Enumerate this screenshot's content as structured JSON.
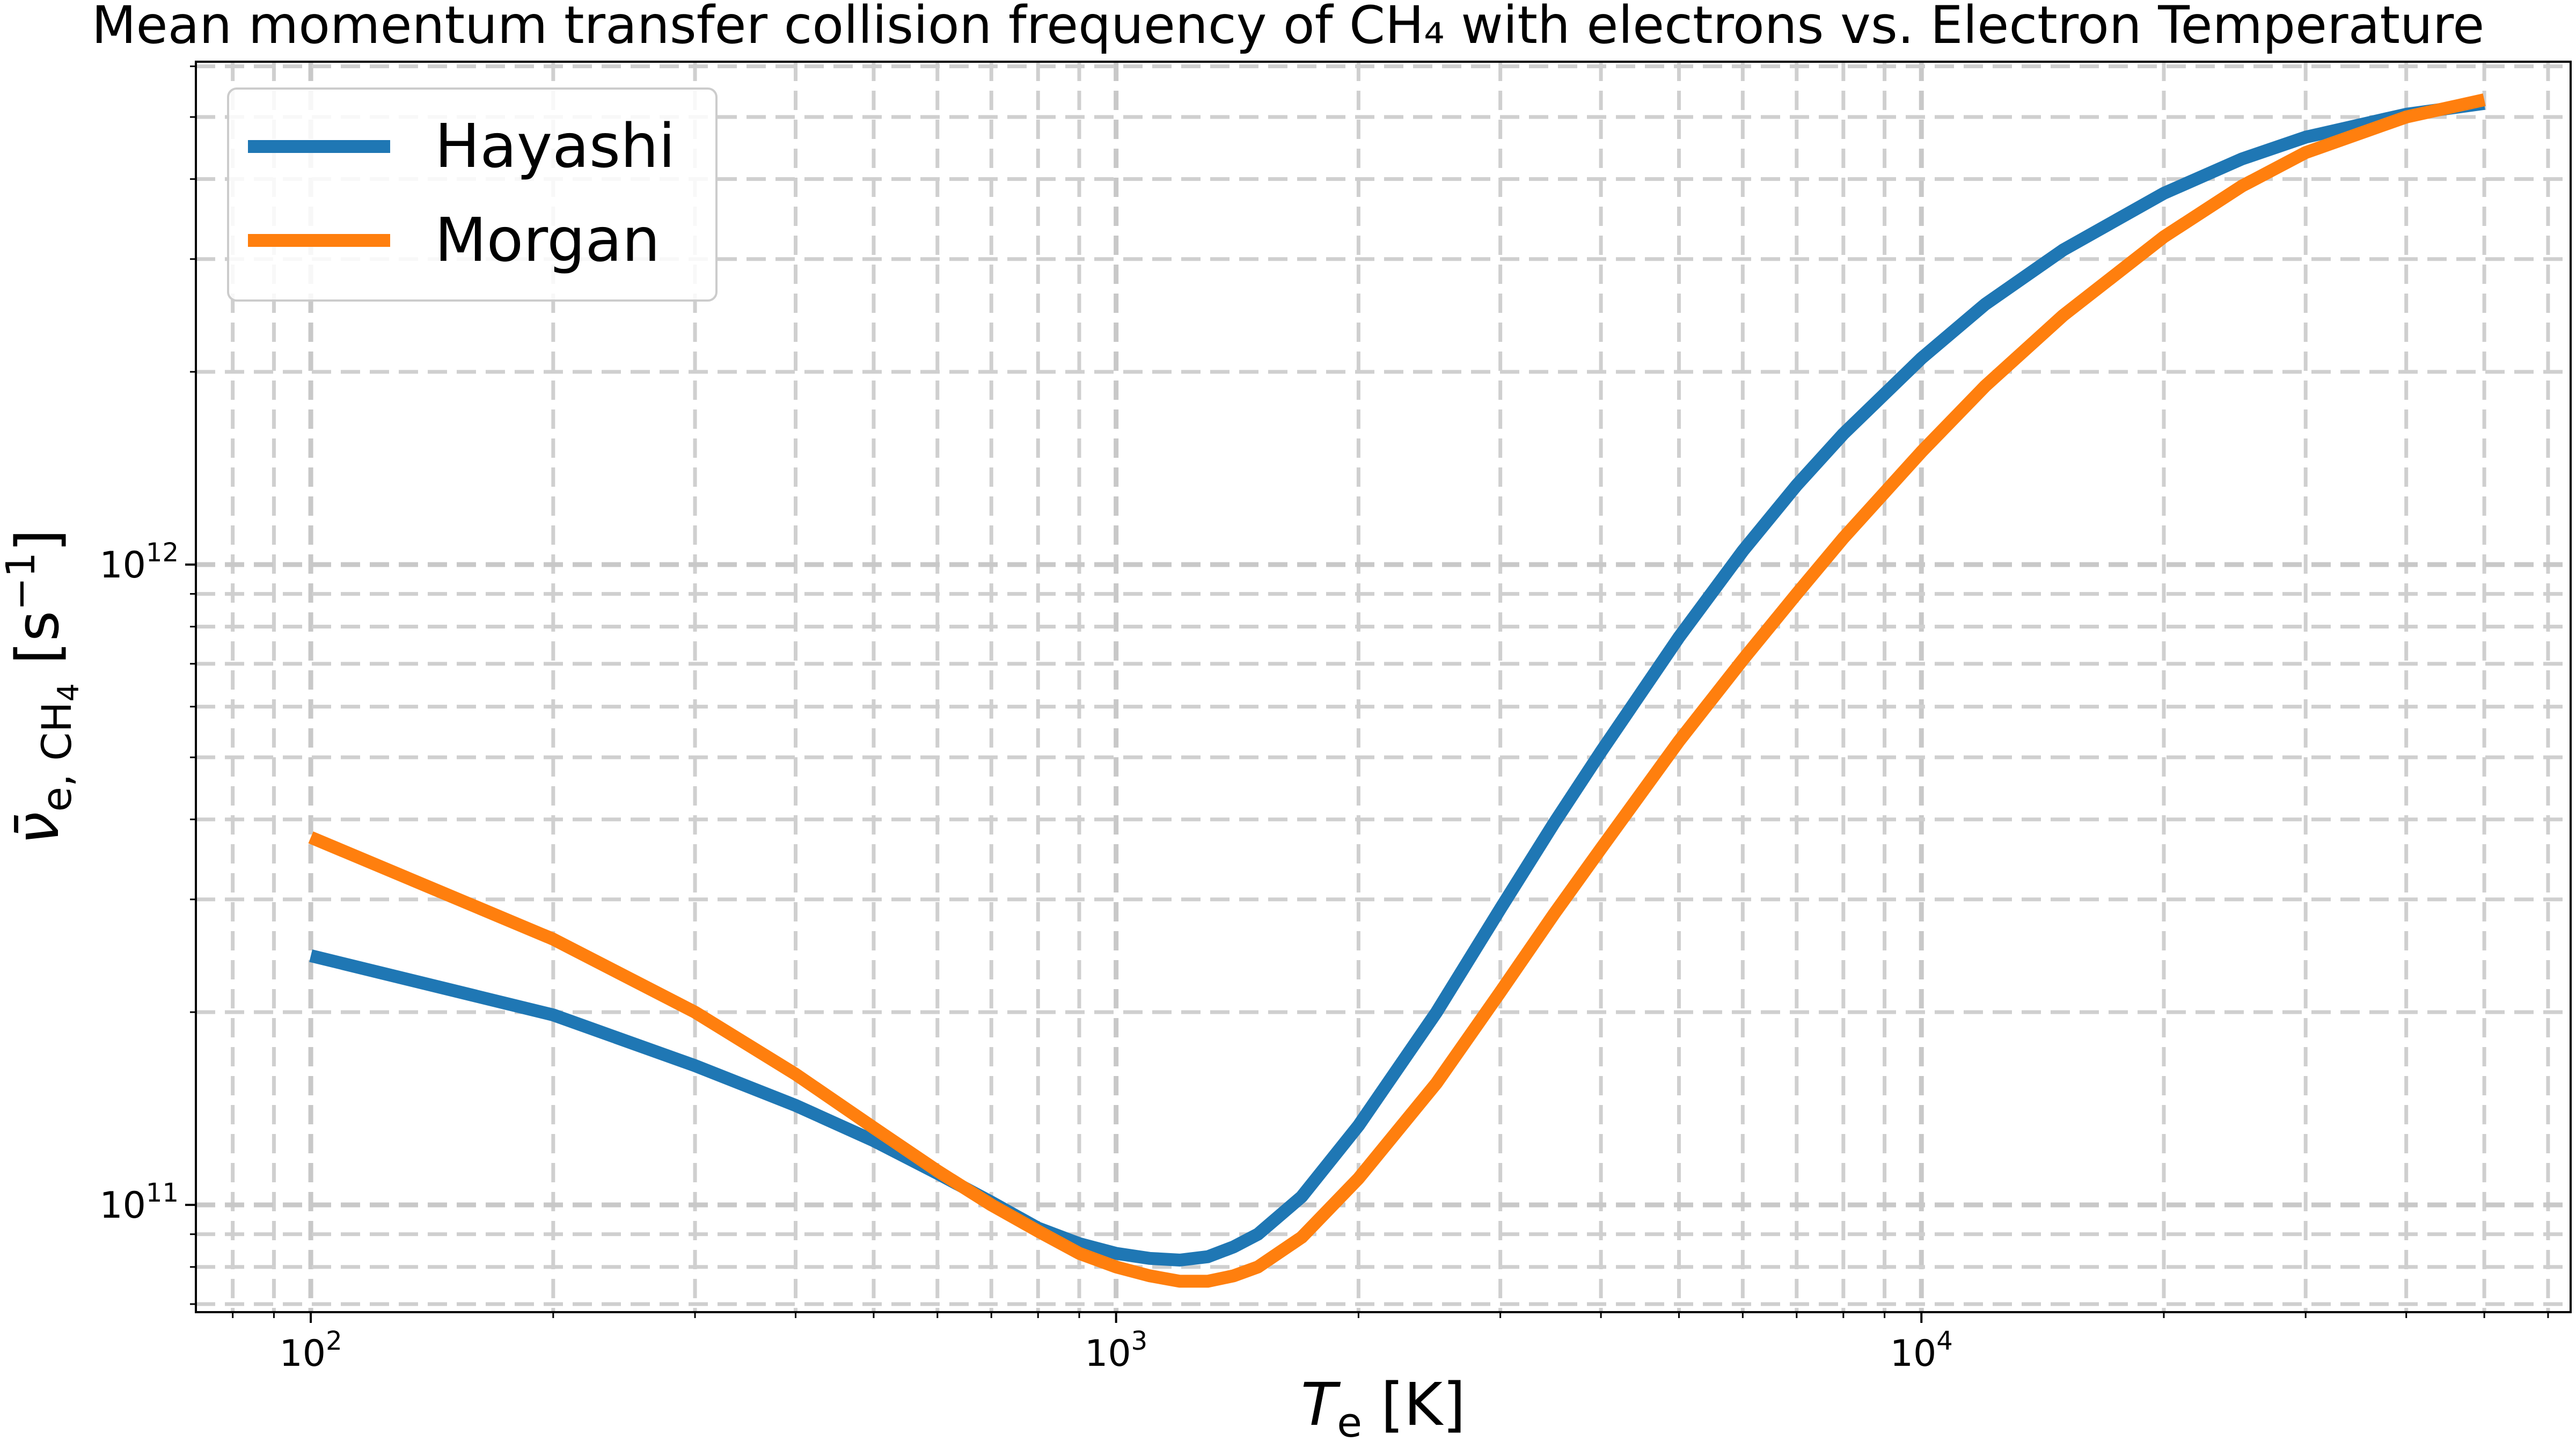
{
  "chart_data": {
    "type": "line",
    "title": "Mean momentum transfer collision frequency of CH₄ with electrons vs. Electron Temperature",
    "xlabel": {
      "symbol": "T",
      "subscript": "e",
      "unit": "[K]"
    },
    "ylabel": {
      "symbol": "ν̄",
      "subscript": "e, CH",
      "subscript_num": "4",
      "unit": "[s",
      "unit_exp": "−1",
      "unit_close": "]"
    },
    "xscale": "log",
    "yscale": "log",
    "xlim": [
      72,
      64000
    ],
    "ylim": [
      68000000000.0,
      6100000000000.0
    ],
    "x_ticks": [
      {
        "value": 100,
        "base": "10",
        "exp": "2"
      },
      {
        "value": 1000,
        "base": "10",
        "exp": "3"
      },
      {
        "value": 10000,
        "base": "10",
        "exp": "4"
      }
    ],
    "y_ticks": [
      {
        "value": 100000000000.0,
        "base": "10",
        "exp": "11"
      },
      {
        "value": 1000000000000.0,
        "base": "10",
        "exp": "12"
      }
    ],
    "grid": true,
    "legend_position": "top-left",
    "series": [
      {
        "name": "Hayashi",
        "color": "#1f77b4",
        "x": [
          100,
          200,
          300,
          400,
          500,
          600,
          700,
          800,
          900,
          1000,
          1100,
          1200,
          1300,
          1400,
          1500,
          1700,
          2000,
          2500,
          3000,
          3500,
          4000,
          5000,
          6000,
          7000,
          8000,
          10000,
          12000,
          15000,
          20000,
          25000,
          30000,
          40000,
          50000
        ],
        "y": [
          245000000000.0,
          198000000000.0,
          165000000000.0,
          143000000000.0,
          126000000000.0,
          112000000000.0,
          101000000000.0,
          92000000000.0,
          87000000000.0,
          84000000000.0,
          82500000000.0,
          82000000000.0,
          83000000000.0,
          86000000000.0,
          90000000000.0,
          103000000000.0,
          133000000000.0,
          200000000000.0,
          290000000000.0,
          395000000000.0,
          510000000000.0,
          770000000000.0,
          1050000000000.0,
          1330000000000.0,
          1600000000000.0,
          2100000000000.0,
          2550000000000.0,
          3100000000000.0,
          3800000000000.0,
          4300000000000.0,
          4650000000000.0,
          5050000000000.0,
          5250000000000.0
        ]
      },
      {
        "name": "Morgan",
        "color": "#ff7f0e",
        "x": [
          100,
          200,
          300,
          400,
          500,
          600,
          700,
          800,
          900,
          1000,
          1100,
          1200,
          1300,
          1400,
          1500,
          1700,
          2000,
          2500,
          3000,
          3500,
          4000,
          5000,
          6000,
          7000,
          8000,
          10000,
          12000,
          15000,
          20000,
          25000,
          30000,
          40000,
          50000
        ],
        "y": [
          375000000000.0,
          260000000000.0,
          200000000000.0,
          160000000000.0,
          132000000000.0,
          113000000000.0,
          100000000000.0,
          91000000000.0,
          84000000000.0,
          80000000000.0,
          77500000000.0,
          76000000000.0,
          76000000000.0,
          77500000000.0,
          80000000000.0,
          89000000000.0,
          110000000000.0,
          155000000000.0,
          215000000000.0,
          285000000000.0,
          360000000000.0,
          530000000000.0,
          710000000000.0,
          900000000000.0,
          1100000000000.0,
          1500000000000.0,
          1900000000000.0,
          2450000000000.0,
          3250000000000.0,
          3900000000000.0,
          4400000000000.0,
          5000000000000.0,
          5320000000000.0
        ]
      }
    ]
  }
}
